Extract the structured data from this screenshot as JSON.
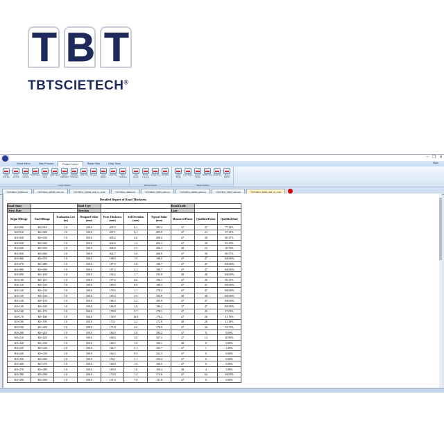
{
  "logo": {
    "letters": [
      "T",
      "B",
      "T"
    ],
    "brand": "TBTSCIETECH",
    "reg": "®"
  },
  "window": {
    "style_label": "Style",
    "minimize": "–",
    "restore": "❐",
    "close": "✕"
  },
  "menu": [
    "Home Menu",
    "Data Process",
    "Project Detect",
    "Radar Slice",
    "Easy Tools"
  ],
  "menu_active": 2,
  "ribbon": [
    {
      "group": "Layer Detect",
      "buttons": [
        "Label Ground",
        "Level Ground",
        "Delete Ground",
        "Track Layer",
        "Delete Layer",
        "Label Layer",
        "Speed Calibration",
        "Calculate Thickness",
        "Point Line",
        "Fill Layer",
        "Layer Report",
        "Layer List",
        "Save Thickness"
      ]
    },
    {
      "group": "Excep Detect",
      "buttons": [
        "Label Excep",
        "Excep Property",
        "Excep List",
        "Add Note"
      ]
    },
    {
      "group": "Target Detect",
      "buttons": [
        "Label Target",
        "Find Target",
        "Delete Target",
        "Modify Type",
        "Target List",
        "Target Report"
      ]
    }
  ],
  "doc_tabs": [
    "YS372BC2_2000M.srd",
    "YS372BC2_2000M_w01.srd",
    "YS372BC2_2000M_w01_L1_b.lab",
    "YS372BC1_900M.srd",
    "YS372BC1_900M_w00.srd",
    "YS372BC2_2000M_w00.srd",
    "YS372BC1_900M_w02.srd",
    "YS372BC1_900M_w02_L2_b.lab"
  ],
  "doc_active": 7,
  "report": {
    "title": "Detailed Report of Road Thickness",
    "info": {
      "road_name": "Road Name",
      "road_type": "Road Type",
      "road_grade": "Road Grade",
      "detect_date": "Detect Date",
      "direction": "Direction",
      "lane": "Lane"
    },
    "columns": [
      "Begin Mileage",
      "End Mileage",
      "Evaluation Len (m)",
      "Designed Value (mm)",
      "Even Thickness (mm)",
      "Std Deviation (mm)",
      "Typical Value (mm)",
      "Measured Points",
      "Qualified Points",
      "Qualified Rate"
    ],
    "rows": [
      [
        "K0+000",
        "K0+010",
        "10",
        "100.0",
        "205.3",
        "6.1",
        "202.2",
        "47",
        "37",
        "77.22%"
      ],
      [
        "K0+010",
        "K0+020",
        "10",
        "100.0",
        "207.1",
        "6.1",
        "205.9",
        "47",
        "23",
        "37.31%"
      ],
      [
        "K0+020",
        "K0+030",
        "10",
        "100.0",
        "205.2",
        "4.6",
        "200.2",
        "47",
        "38",
        "80.57%"
      ],
      [
        "K0+030",
        "K0+040",
        "10",
        "100.0",
        "204.6",
        "1.4",
        "204.3",
        "47",
        "39",
        "83.10%"
      ],
      [
        "K0+040",
        "K0+050",
        "10",
        "100.0",
        "206.8",
        "2.5",
        "206.3",
        "48",
        "23",
        "38.76%"
      ],
      [
        "K0+050",
        "K0+060",
        "10",
        "100.0",
        "202.7",
        "3.8",
        "200.9",
        "47",
        "38",
        "80.57%"
      ],
      [
        "K0+060",
        "K0+070",
        "10",
        "100.0",
        "198.9",
        "1.9",
        "198.5",
        "47",
        "47",
        "100.00%"
      ],
      [
        "K0+070",
        "K0+080",
        "10",
        "100.0",
        "187.9",
        "3.8",
        "186.7",
        "47",
        "47",
        "100.00%"
      ],
      [
        "K0+080",
        "K0+090",
        "10",
        "100.0",
        "187.2",
        "2.1",
        "186.7",
        "47",
        "47",
        "100.00%"
      ],
      [
        "K0+090",
        "K0+100",
        "10",
        "100.0",
        "194.2",
        "1.7",
        "193.8",
        "48",
        "48",
        "100.00%"
      ],
      [
        "K0+100",
        "K0+110",
        "10",
        "100.0",
        "197.4",
        "6.6",
        "196.1",
        "47",
        "40",
        "85.11%"
      ],
      [
        "K0+110",
        "K0+120",
        "10",
        "100.0",
        "189.9",
        "8.9",
        "188.3",
        "47",
        "47",
        "100.00%"
      ],
      [
        "K0+120",
        "K0+130",
        "10",
        "100.0",
        "178.6",
        "1.7",
        "178.2",
        "47",
        "47",
        "100.00%"
      ],
      [
        "K0+130",
        "K0+140",
        "10",
        "100.0",
        "185.4",
        "3.9",
        "184.8",
        "48",
        "48",
        "100.00%"
      ],
      [
        "K0+140",
        "K0+150",
        "10",
        "100.0",
        "186.3",
        "2.2",
        "185.9",
        "47",
        "47",
        "100.00%"
      ],
      [
        "K0+150",
        "K0+160",
        "10",
        "100.0",
        "186.8",
        "3.0",
        "186.2",
        "47",
        "47",
        "100.00%"
      ],
      [
        "K0+160",
        "K0+170",
        "10",
        "100.0",
        "178.8",
        "5.7",
        "178.1",
        "47",
        "45",
        "97.01%"
      ],
      [
        "K0+170",
        "K0+180",
        "10",
        "100.0",
        "178.9",
        "13.0",
        "176.2",
        "47",
        "28",
        "41.79%"
      ],
      [
        "K0+180",
        "K0+190",
        "10",
        "100.0",
        "173.1",
        "2.2",
        "172.8",
        "48",
        "28",
        "41.18%"
      ],
      [
        "K0+190",
        "K0+200",
        "10",
        "100.0",
        "171.8",
        "4.2",
        "170.9",
        "47",
        "36",
        "53.73%"
      ],
      [
        "K0+200",
        "K0+210",
        "10",
        "100.0",
        "184.9",
        "5.8",
        "184.2",
        "47",
        "0",
        "0.00%"
      ],
      [
        "K0+210",
        "K0+220",
        "10",
        "100.0",
        "168.6",
        "3.8",
        "167.4",
        "47",
        "14",
        "20.90%"
      ],
      [
        "K0+220",
        "K0+230",
        "10",
        "100.0",
        "160.5",
        "1.8",
        "160.1",
        "48",
        "0",
        "0.00%"
      ],
      [
        "K0+230",
        "K0+240",
        "10",
        "100.0",
        "166.7",
        "5.1",
        "165.7",
        "47",
        "1",
        "1.49%"
      ],
      [
        "K0+240",
        "K0+250",
        "10",
        "100.0",
        "164.3",
        "8.5",
        "162.3",
        "47",
        "0",
        "0.00%"
      ],
      [
        "K0+250",
        "K0+260",
        "10",
        "100.0",
        "156.1",
        "3.1",
        "155.4",
        "47",
        "0",
        "0.00%"
      ],
      [
        "K0+260",
        "K0+270",
        "10",
        "100.0",
        "160.9",
        "1.9",
        "160.5",
        "47",
        "0",
        "0.00%"
      ],
      [
        "K0+270",
        "K0+280",
        "10",
        "100.0",
        "169.8",
        "1.6",
        "169.4",
        "48",
        "4",
        "5.88%"
      ],
      [
        "K0+280",
        "K0+290",
        "10",
        "100.0",
        "174.9",
        "1.4",
        "174.6",
        "47",
        "63",
        "94.03%"
      ],
      [
        "K0+290",
        "K0+300",
        "10",
        "100.0",
        "131.0",
        "7.0",
        "131.8",
        "47",
        "0",
        "0.00%"
      ]
    ]
  }
}
